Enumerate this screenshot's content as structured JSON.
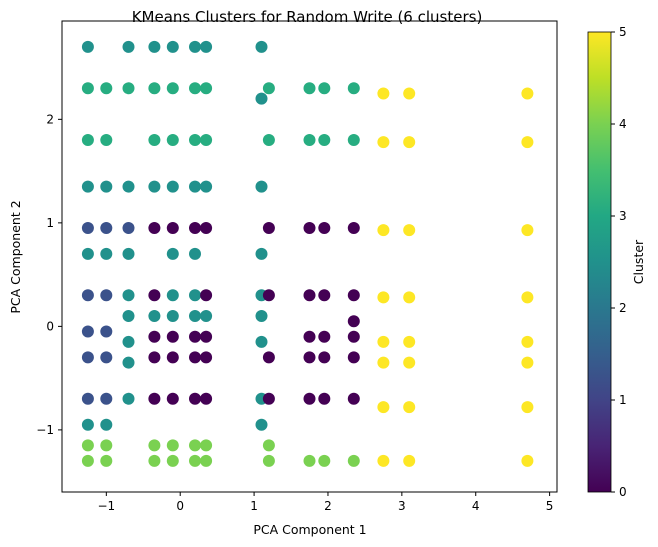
{
  "chart_data": {
    "type": "scatter",
    "title": "KMeans Clusters for Random Write (6 clusters)",
    "xlabel": "PCA Component 1",
    "ylabel": "PCA Component 2",
    "xlim": [
      -1.6,
      5.1
    ],
    "ylim": [
      -1.6,
      2.95
    ],
    "xticks": [
      -1,
      0,
      1,
      2,
      3,
      4,
      5
    ],
    "yticks": [
      -1,
      0,
      1,
      2
    ],
    "xtick_labels": [
      "−1",
      "0",
      "1",
      "2",
      "3",
      "4",
      "5"
    ],
    "ytick_labels": [
      "−1",
      "0",
      "1",
      "2"
    ],
    "grid": false,
    "colorbar": {
      "label": "Cluster",
      "range": [
        0,
        5
      ],
      "ticks": [
        0,
        1,
        2,
        3,
        4,
        5
      ],
      "tick_labels": [
        "0",
        "1",
        "2",
        "3",
        "4",
        "5"
      ],
      "colormap": "viridis"
    },
    "cluster_colors": [
      "#440154",
      "#3b528b",
      "#21918c",
      "#27ad81",
      "#7ad151",
      "#fde725"
    ],
    "column_x": [
      -1.25,
      -1.0,
      -0.7,
      -0.35,
      -0.1,
      0.2,
      0.35,
      1.1,
      1.2,
      1.75,
      1.95,
      2.35,
      2.75,
      3.1,
      4.7
    ],
    "bands": [
      {
        "y": 2.7,
        "cluster": 2,
        "cols": [
          0,
          2,
          3,
          4,
          5,
          6,
          7
        ]
      },
      {
        "y": 2.3,
        "cluster": 3,
        "cols": [
          0,
          1,
          2,
          3,
          4,
          5,
          6,
          8,
          9,
          10,
          11
        ]
      },
      {
        "y": 2.25,
        "cluster": 5,
        "cols": [
          12,
          13,
          14
        ]
      },
      {
        "y": 2.2,
        "cluster": 2,
        "cols": [
          7
        ]
      },
      {
        "y": 1.8,
        "cluster": 3,
        "cols": [
          0,
          1,
          3,
          4,
          5,
          6,
          8,
          9,
          10,
          11
        ]
      },
      {
        "y": 1.78,
        "cluster": 5,
        "cols": [
          12,
          13,
          14
        ]
      },
      {
        "y": 1.35,
        "cluster": 2,
        "cols": [
          0,
          1,
          2,
          3,
          4,
          5,
          6,
          7
        ]
      },
      {
        "y": 0.95,
        "cluster": 1,
        "cols": [
          0,
          1,
          2
        ]
      },
      {
        "y": 0.95,
        "cluster": 0,
        "cols": [
          3,
          4,
          5,
          6,
          8,
          9,
          10,
          11
        ]
      },
      {
        "y": 0.93,
        "cluster": 5,
        "cols": [
          12,
          13,
          14
        ]
      },
      {
        "y": 0.7,
        "cluster": 2,
        "cols": [
          0,
          1,
          2,
          4,
          5,
          7
        ]
      },
      {
        "y": 0.3,
        "cluster": 1,
        "cols": [
          0,
          1
        ]
      },
      {
        "y": 0.3,
        "cluster": 2,
        "cols": [
          2,
          4,
          5,
          7
        ]
      },
      {
        "y": 0.3,
        "cluster": 0,
        "cols": [
          3,
          6,
          8,
          9,
          10,
          11
        ]
      },
      {
        "y": 0.28,
        "cluster": 5,
        "cols": [
          12,
          13,
          14
        ]
      },
      {
        "y": 0.1,
        "cluster": 2,
        "cols": [
          2,
          3,
          4,
          5,
          6,
          7
        ]
      },
      {
        "y": 0.05,
        "cluster": 0,
        "cols": [
          11
        ]
      },
      {
        "y": -0.05,
        "cluster": 1,
        "cols": [
          0,
          1
        ]
      },
      {
        "y": -0.1,
        "cluster": 0,
        "cols": [
          3,
          4,
          5,
          6,
          9,
          10,
          11
        ]
      },
      {
        "y": -0.15,
        "cluster": 5,
        "cols": [
          12,
          13,
          14
        ]
      },
      {
        "y": -0.15,
        "cluster": 2,
        "cols": [
          2,
          7
        ]
      },
      {
        "y": -0.3,
        "cluster": 1,
        "cols": [
          0,
          1
        ]
      },
      {
        "y": -0.3,
        "cluster": 0,
        "cols": [
          3,
          4,
          5,
          6,
          8,
          9,
          10,
          11
        ]
      },
      {
        "y": -0.35,
        "cluster": 5,
        "cols": [
          12,
          13,
          14
        ]
      },
      {
        "y": -0.35,
        "cluster": 2,
        "cols": [
          2
        ]
      },
      {
        "y": -0.7,
        "cluster": 1,
        "cols": [
          0,
          1
        ]
      },
      {
        "y": -0.7,
        "cluster": 2,
        "cols": [
          2,
          7
        ]
      },
      {
        "y": -0.7,
        "cluster": 0,
        "cols": [
          3,
          4,
          5,
          6,
          8,
          9,
          10,
          11
        ]
      },
      {
        "y": -0.78,
        "cluster": 5,
        "cols": [
          12,
          13,
          14
        ]
      },
      {
        "y": -0.95,
        "cluster": 2,
        "cols": [
          0,
          1,
          7
        ]
      },
      {
        "y": -1.15,
        "cluster": 4,
        "cols": [
          0,
          1,
          3,
          4,
          5,
          6,
          8
        ]
      },
      {
        "y": -1.3,
        "cluster": 4,
        "cols": [
          0,
          1,
          3,
          4,
          5,
          6,
          8,
          9,
          10,
          11
        ]
      },
      {
        "y": -1.3,
        "cluster": 5,
        "cols": [
          12,
          13,
          14
        ]
      }
    ]
  }
}
